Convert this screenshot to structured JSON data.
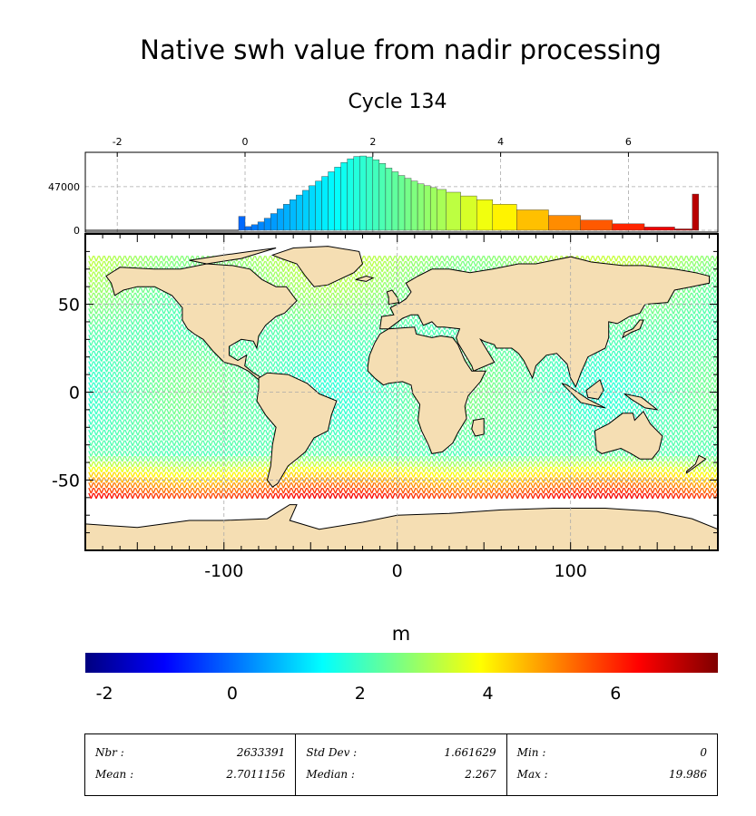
{
  "title": "Native swh value from nadir processing",
  "subtitle": "Cycle 134",
  "colors": {
    "land": "#f5deb3",
    "colormap": [
      "#00007f",
      "#0000ff",
      "#007fff",
      "#00ffff",
      "#7fff7f",
      "#ffff00",
      "#ff7f00",
      "#ff0000",
      "#7f0000"
    ]
  },
  "chart_data": [
    {
      "type": "bar",
      "role": "histogram",
      "x": [
        -0.05,
        0.05,
        0.15,
        0.25,
        0.35,
        0.45,
        0.55,
        0.65,
        0.75,
        0.85,
        0.95,
        1.05,
        1.15,
        1.25,
        1.35,
        1.45,
        1.55,
        1.65,
        1.75,
        1.85,
        1.95,
        2.05,
        2.15,
        2.25,
        2.35,
        2.45,
        2.55,
        2.65,
        2.75,
        2.85,
        2.95,
        3.05,
        3.25,
        3.5,
        3.75,
        4.0,
        4.5,
        5.0,
        5.5,
        6.0,
        6.5,
        6.95,
        7.05
      ],
      "values": [
        15000,
        4000,
        6000,
        9000,
        13000,
        18000,
        23000,
        28000,
        33000,
        38000,
        43000,
        48000,
        53000,
        58000,
        63000,
        68000,
        73000,
        77000,
        79500,
        80000,
        79000,
        76000,
        72000,
        67000,
        63000,
        59000,
        56000,
        53000,
        50000,
        48000,
        46000,
        44000,
        41000,
        37000,
        33000,
        28000,
        22000,
        16000,
        11000,
        7000,
        3500,
        1500,
        39000
      ],
      "xlim": [
        -2.5,
        7.4
      ],
      "x_ticks": [
        "-2",
        "0",
        "2",
        "4",
        "6"
      ],
      "x_tick_values": [
        -2,
        0,
        2,
        4,
        6
      ],
      "y_ticks": [
        "0",
        "47000"
      ],
      "y_tick_values": [
        0,
        47000
      ],
      "ylim": [
        0,
        82000
      ],
      "grid": true
    },
    {
      "type": "heatmap",
      "role": "map",
      "xlim": [
        -180,
        185
      ],
      "ylim": [
        -90,
        90
      ],
      "x_ticks": [
        "-100",
        "0",
        "100"
      ],
      "x_tick_values": [
        -100,
        0,
        100
      ],
      "y_ticks": [
        "50",
        "0",
        "-50"
      ],
      "y_tick_values": [
        50,
        0,
        -50
      ],
      "grid": true
    },
    {
      "type": "heatmap",
      "role": "colorbar",
      "label": "m",
      "range": [
        -2.3,
        7.6
      ],
      "ticks": [
        "-2",
        "0",
        "2",
        "4",
        "6"
      ],
      "tick_values": [
        -2,
        0,
        2,
        4,
        6
      ]
    }
  ],
  "stats": [
    [
      {
        "label": "Nbr :",
        "value": "2633391"
      },
      {
        "label": "Mean :",
        "value": "2.7011156"
      }
    ],
    [
      {
        "label": "Std Dev :",
        "value": "1.661629"
      },
      {
        "label": "Median :",
        "value": "2.267"
      }
    ],
    [
      {
        "label": "Min :",
        "value": "0"
      },
      {
        "label": "Max :",
        "value": "19.986"
      }
    ]
  ]
}
